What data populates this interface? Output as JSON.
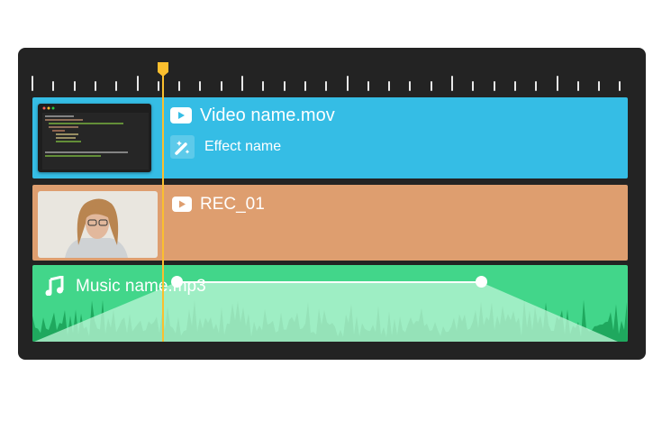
{
  "colors": {
    "video": "#35BDE5",
    "recording": "#DE9E6F",
    "audio": "#42D68A",
    "playhead": "#FBBF2E",
    "background": "#232323"
  },
  "tracks": [
    {
      "title": "Video name.mov",
      "icon": "play-icon",
      "effect": {
        "label": "Effect name",
        "icon": "magic-wand-icon"
      }
    },
    {
      "title": "REC_01",
      "icon": "play-icon"
    },
    {
      "title": "Music name.mp3",
      "icon": "music-note-icon"
    }
  ]
}
